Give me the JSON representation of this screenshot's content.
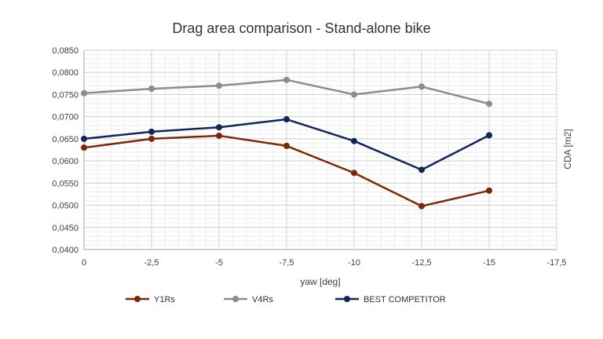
{
  "chart_data": {
    "type": "line",
    "title": "Drag area comparison - Stand-alone bike",
    "xlabel": "yaw [deg]",
    "ylabel": "CDA [m2]",
    "x": [
      0,
      -2.5,
      -5,
      -7.5,
      -10,
      -12.5,
      -15
    ],
    "x_ticks": [
      "0",
      "-2,5",
      "-5",
      "-7,5",
      "-10",
      "-12,5",
      "-15",
      "-17,5"
    ],
    "x_tick_values": [
      0,
      -2.5,
      -5,
      -7.5,
      -10,
      -12.5,
      -15,
      -17.5
    ],
    "xlim": [
      0,
      -17.5
    ],
    "ylim": [
      0.04,
      0.085
    ],
    "y_ticks": [
      "0,0400",
      "0,0450",
      "0,0500",
      "0,0550",
      "0,0600",
      "0,0650",
      "0,0700",
      "0,0750",
      "0,0800",
      "0,0850"
    ],
    "y_tick_values": [
      0.04,
      0.045,
      0.05,
      0.055,
      0.06,
      0.065,
      0.07,
      0.075,
      0.08,
      0.085
    ],
    "grid": true,
    "legend_position": "bottom",
    "series": [
      {
        "name": "Y1Rs",
        "color": "#7f2704",
        "values": [
          0.063,
          0.065,
          0.0657,
          0.0634,
          0.0573,
          0.0498,
          0.0533
        ]
      },
      {
        "name": "V4Rs",
        "color": "#8c8c8c",
        "values": [
          0.0753,
          0.0763,
          0.077,
          0.0783,
          0.075,
          0.0768,
          0.0729
        ]
      },
      {
        "name": "BEST COMPETITOR",
        "color": "#13265c",
        "values": [
          0.065,
          0.0666,
          0.0676,
          0.0694,
          0.0645,
          0.058,
          0.0658
        ]
      }
    ]
  }
}
